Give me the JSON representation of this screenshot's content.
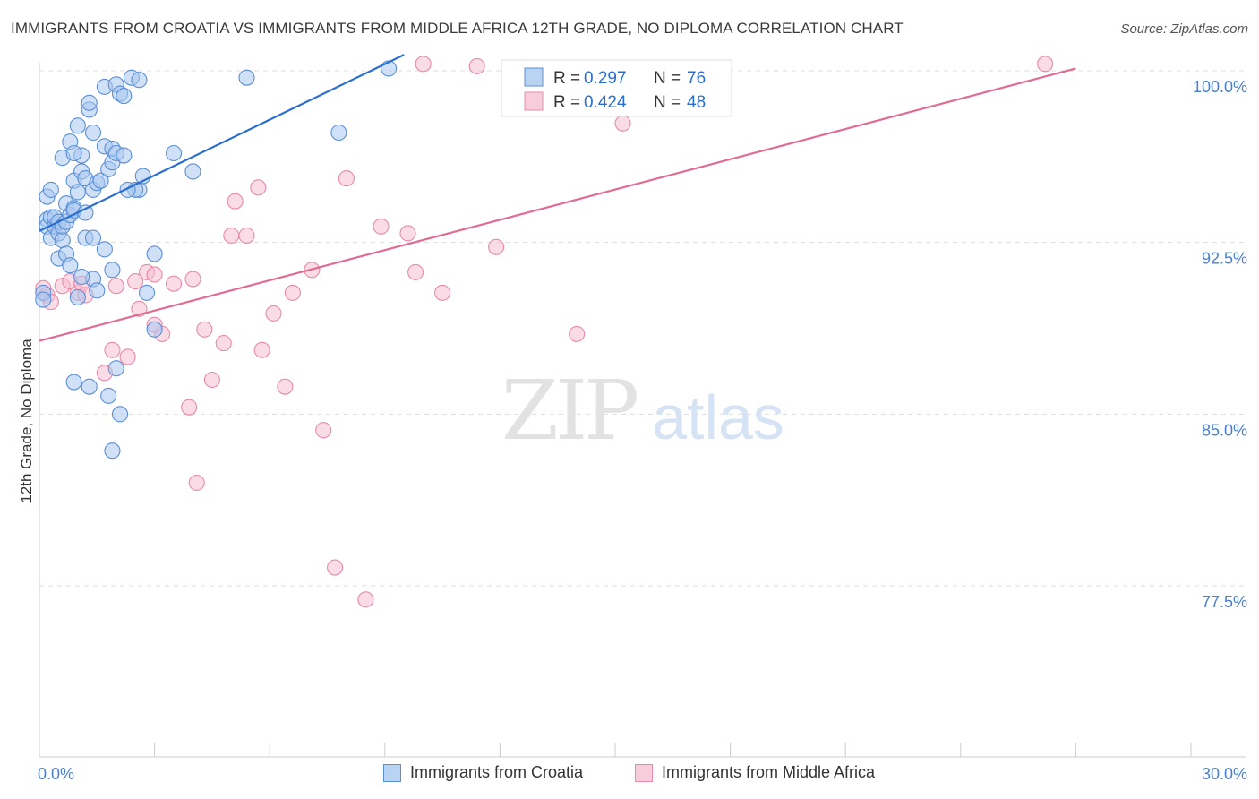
{
  "title": "IMMIGRANTS FROM CROATIA VS IMMIGRANTS FROM MIDDLE AFRICA 12TH GRADE, NO DIPLOMA CORRELATION CHART",
  "source": "Source: ZipAtlas.com",
  "watermark": {
    "zip": "ZIP",
    "atlas": "atlas"
  },
  "colors": {
    "blue_fill": "#a9c8f0",
    "blue_stroke": "#5b8fd6",
    "blue_line": "#2a6fcf",
    "pink_fill": "#f5c0d1",
    "pink_stroke": "#e88aa8",
    "pink_line": "#e06b94",
    "tick_label": "#4a7fd0",
    "grid": "#dddddd"
  },
  "legend_top": [
    {
      "r_label": "R = ",
      "r_value": "0.297",
      "n_label": "N = ",
      "n_value": "76"
    },
    {
      "r_label": "R = ",
      "r_value": "0.424",
      "n_label": "N = ",
      "n_value": "48"
    }
  ],
  "chart_data": {
    "type": "scatter",
    "title": "IMMIGRANTS FROM CROATIA VS IMMIGRANTS FROM MIDDLE AFRICA 12TH GRADE, NO DIPLOMA CORRELATION CHART",
    "xlabel": "",
    "ylabel": "12th Grade, No Diploma",
    "xlim": [
      0,
      30
    ],
    "ylim": [
      70.5,
      101.7
    ],
    "x_tick_labels": [
      "0.0%",
      "30.0%"
    ],
    "y_ticks": [
      {
        "value": 100.0,
        "label": "100.0%"
      },
      {
        "value": 92.5,
        "label": "92.5%"
      },
      {
        "value": 85.0,
        "label": "85.0%"
      },
      {
        "value": 77.5,
        "label": "77.5%"
      }
    ],
    "series": [
      {
        "name": "Immigrants from Croatia",
        "color": "blue",
        "R": 0.297,
        "N": 76,
        "trend": {
          "x": [
            0.0,
            9.5
          ],
          "y": [
            93.0,
            100.7
          ]
        },
        "points": [
          [
            0.1,
            90.3
          ],
          [
            0.1,
            90.0
          ],
          [
            0.2,
            93.5
          ],
          [
            0.2,
            93.2
          ],
          [
            0.2,
            94.5
          ],
          [
            0.3,
            94.8
          ],
          [
            0.3,
            92.7
          ],
          [
            0.3,
            93.6
          ],
          [
            0.4,
            93.2
          ],
          [
            0.4,
            93.6
          ],
          [
            0.5,
            92.9
          ],
          [
            0.5,
            91.8
          ],
          [
            0.5,
            93.4
          ],
          [
            0.6,
            92.6
          ],
          [
            0.6,
            96.2
          ],
          [
            0.6,
            93.2
          ],
          [
            0.7,
            94.2
          ],
          [
            0.7,
            92.0
          ],
          [
            0.7,
            93.4
          ],
          [
            0.8,
            93.7
          ],
          [
            0.8,
            96.9
          ],
          [
            0.8,
            91.5
          ],
          [
            0.9,
            94.0
          ],
          [
            0.9,
            95.2
          ],
          [
            0.9,
            93.9
          ],
          [
            1.0,
            97.6
          ],
          [
            1.0,
            90.1
          ],
          [
            1.0,
            94.7
          ],
          [
            1.1,
            95.6
          ],
          [
            1.1,
            96.3
          ],
          [
            1.2,
            92.7
          ],
          [
            1.2,
            95.3
          ],
          [
            1.3,
            98.3
          ],
          [
            1.3,
            98.6
          ],
          [
            1.4,
            97.3
          ],
          [
            1.4,
            90.9
          ],
          [
            1.4,
            94.8
          ],
          [
            1.5,
            95.1
          ],
          [
            1.5,
            90.4
          ],
          [
            1.6,
            95.2
          ],
          [
            1.7,
            99.3
          ],
          [
            1.7,
            96.7
          ],
          [
            1.8,
            95.7
          ],
          [
            1.9,
            96.0
          ],
          [
            1.9,
            96.6
          ],
          [
            1.9,
            91.3
          ],
          [
            2.0,
            99.4
          ],
          [
            2.0,
            96.4
          ],
          [
            2.1,
            99.0
          ],
          [
            2.2,
            96.3
          ],
          [
            2.2,
            98.9
          ],
          [
            2.4,
            99.7
          ],
          [
            2.6,
            99.6
          ],
          [
            2.6,
            94.8
          ],
          [
            2.0,
            87.0
          ],
          [
            1.8,
            85.8
          ],
          [
            1.3,
            86.2
          ],
          [
            0.9,
            86.4
          ],
          [
            1.9,
            83.4
          ],
          [
            2.8,
            90.3
          ],
          [
            3.0,
            88.7
          ],
          [
            2.5,
            94.8
          ],
          [
            2.1,
            85.0
          ],
          [
            3.0,
            92.0
          ],
          [
            3.5,
            96.4
          ],
          [
            4.0,
            95.6
          ],
          [
            7.8,
            97.3
          ],
          [
            9.1,
            100.1
          ],
          [
            1.4,
            92.7
          ],
          [
            1.7,
            92.2
          ],
          [
            2.3,
            94.8
          ],
          [
            1.2,
            93.8
          ],
          [
            0.9,
            96.4
          ],
          [
            1.1,
            91.0
          ],
          [
            2.7,
            95.4
          ],
          [
            5.4,
            99.7
          ]
        ]
      },
      {
        "name": "Immigrants from Middle Africa",
        "color": "pink",
        "R": 0.424,
        "N": 48,
        "trend": {
          "x": [
            0.0,
            27.0
          ],
          "y": [
            88.2,
            100.1
          ]
        },
        "points": [
          [
            0.1,
            90.5
          ],
          [
            0.2,
            90.2
          ],
          [
            0.3,
            89.9
          ],
          [
            0.6,
            90.6
          ],
          [
            0.8,
            90.8
          ],
          [
            1.0,
            90.3
          ],
          [
            1.1,
            90.7
          ],
          [
            1.2,
            90.2
          ],
          [
            1.7,
            86.8
          ],
          [
            1.9,
            87.8
          ],
          [
            2.0,
            90.6
          ],
          [
            2.3,
            87.5
          ],
          [
            2.6,
            89.6
          ],
          [
            2.8,
            91.2
          ],
          [
            3.0,
            91.1
          ],
          [
            3.2,
            88.5
          ],
          [
            3.5,
            90.7
          ],
          [
            3.9,
            85.3
          ],
          [
            4.0,
            90.9
          ],
          [
            4.1,
            82.0
          ],
          [
            4.3,
            88.7
          ],
          [
            4.5,
            86.5
          ],
          [
            4.8,
            88.1
          ],
          [
            5.0,
            92.8
          ],
          [
            5.1,
            94.3
          ],
          [
            5.4,
            92.8
          ],
          [
            5.7,
            94.9
          ],
          [
            5.8,
            87.8
          ],
          [
            6.1,
            89.4
          ],
          [
            6.4,
            86.2
          ],
          [
            6.6,
            90.3
          ],
          [
            7.1,
            91.3
          ],
          [
            7.4,
            84.3
          ],
          [
            7.7,
            78.3
          ],
          [
            8.0,
            95.3
          ],
          [
            8.5,
            76.9
          ],
          [
            8.9,
            93.2
          ],
          [
            10.0,
            100.3
          ],
          [
            9.8,
            91.2
          ],
          [
            9.6,
            92.9
          ],
          [
            10.5,
            90.3
          ],
          [
            11.4,
            100.2
          ],
          [
            11.9,
            92.3
          ],
          [
            14.0,
            88.5
          ],
          [
            15.2,
            97.7
          ],
          [
            26.2,
            100.3
          ],
          [
            3.0,
            88.9
          ],
          [
            2.5,
            90.8
          ]
        ]
      }
    ]
  }
}
